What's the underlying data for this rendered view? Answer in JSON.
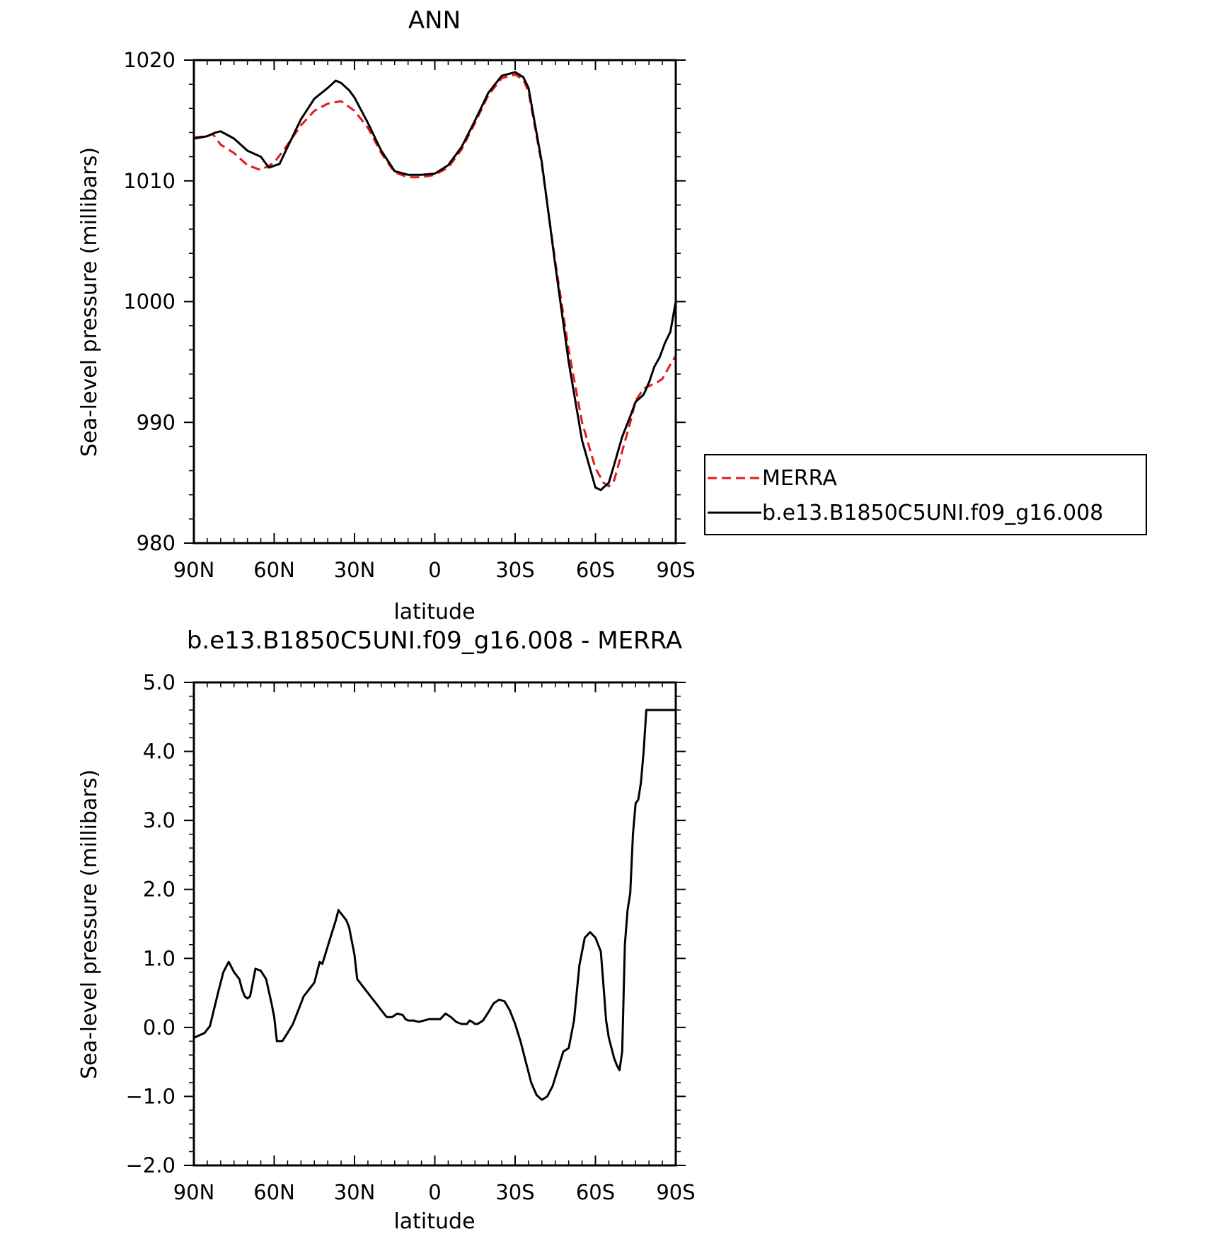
{
  "chart_data": [
    {
      "type": "line",
      "title": "ANN",
      "xlabel": "latitude",
      "ylabel": "Sea-level pressure (millibars)",
      "x_axis": "latitude degrees, 90 = 90N, -90 = 90S",
      "xlim": [
        90,
        -90
      ],
      "ylim": [
        980,
        1020
      ],
      "x_ticks": [
        90,
        60,
        30,
        0,
        -30,
        -60,
        -90
      ],
      "x_tick_labels": [
        "90N",
        "60N",
        "30N",
        "0",
        "30S",
        "60S",
        "90S"
      ],
      "y_ticks": [
        980,
        990,
        1000,
        1010,
        1020
      ],
      "y_tick_labels": [
        "980",
        "990",
        "1000",
        "1010",
        "1020"
      ],
      "legend_position": "right",
      "series": [
        {
          "name": "MERRA",
          "color": "#e41a1c",
          "dash": "dashed",
          "x": [
            90,
            85,
            83,
            80,
            75,
            70,
            65,
            60,
            55,
            50,
            45,
            40,
            35,
            30,
            25,
            20,
            15,
            10,
            5,
            0,
            -5,
            -10,
            -15,
            -20,
            -25,
            -30,
            -33,
            -35,
            -40,
            -45,
            -50,
            -55,
            -60,
            -63,
            -65,
            -67,
            -70,
            -73,
            -75,
            -78,
            -80,
            -83,
            -85,
            -88,
            -90
          ],
          "y": [
            1013.6,
            1013.7,
            1013.9,
            1013.0,
            1012.3,
            1011.3,
            1010.9,
            1011.5,
            1013.0,
            1014.6,
            1015.8,
            1016.4,
            1016.6,
            1015.8,
            1014.4,
            1012.3,
            1010.7,
            1010.3,
            1010.3,
            1010.5,
            1011.1,
            1012.6,
            1014.8,
            1017.1,
            1018.5,
            1018.8,
            1018.4,
            1017.4,
            1011.3,
            1003.3,
            996.0,
            990.0,
            986.2,
            985.0,
            984.7,
            985.2,
            987.6,
            990.0,
            991.8,
            992.8,
            993.0,
            993.3,
            993.6,
            994.8,
            995.5
          ]
        },
        {
          "name": "b.e13.B1850C5UNI.f09_g16.008",
          "color": "#000000",
          "dash": "solid",
          "x": [
            90,
            85,
            82,
            80,
            75,
            70,
            65,
            62,
            58,
            55,
            50,
            45,
            40,
            37,
            35,
            32,
            30,
            25,
            20,
            15,
            10,
            5,
            0,
            -5,
            -10,
            -15,
            -20,
            -25,
            -30,
            -33,
            -35,
            -40,
            -45,
            -50,
            -55,
            -60,
            -62,
            -65,
            -67,
            -70,
            -73,
            -75,
            -78,
            -80,
            -82,
            -84,
            -86,
            -88,
            -90
          ],
          "y": [
            1013.5,
            1013.7,
            1014.0,
            1014.1,
            1013.5,
            1012.5,
            1012.0,
            1011.1,
            1011.4,
            1012.8,
            1015.1,
            1016.8,
            1017.7,
            1018.3,
            1018.1,
            1017.5,
            1016.9,
            1014.8,
            1012.5,
            1010.8,
            1010.5,
            1010.5,
            1010.6,
            1011.3,
            1012.8,
            1015.0,
            1017.3,
            1018.7,
            1019.0,
            1018.6,
            1017.7,
            1011.5,
            1003.0,
            995.0,
            988.5,
            984.6,
            984.4,
            985.0,
            986.5,
            988.8,
            990.5,
            991.7,
            992.3,
            993.3,
            994.6,
            995.4,
            996.6,
            997.5,
            1000.0
          ]
        }
      ]
    },
    {
      "type": "line",
      "title": "b.e13.B1850C5UNI.f09_g16.008 - MERRA",
      "xlabel": "latitude",
      "ylabel": "Sea-level pressure (millibars)",
      "x_axis": "latitude degrees, 90 = 90N, -90 = 90S",
      "xlim": [
        90,
        -90
      ],
      "ylim": [
        -2.0,
        5.0
      ],
      "x_ticks": [
        90,
        60,
        30,
        0,
        -30,
        -60,
        -90
      ],
      "x_tick_labels": [
        "90N",
        "60N",
        "30N",
        "0",
        "30S",
        "60S",
        "90S"
      ],
      "y_ticks": [
        -2.0,
        -1.0,
        0.0,
        1.0,
        2.0,
        3.0,
        4.0,
        5.0
      ],
      "y_tick_labels": [
        "-2.0",
        "-1.0",
        "0.0",
        "1.0",
        "2.0",
        "3.0",
        "4.0",
        "5.0"
      ],
      "series": [
        {
          "color": "#000000",
          "dash": "solid",
          "x": [
            90,
            86,
            84,
            81,
            79,
            77,
            75,
            73,
            72,
            71,
            70,
            69,
            67,
            65,
            63,
            61,
            60,
            59,
            57,
            55,
            53,
            51,
            49,
            47,
            45,
            43,
            42,
            41,
            39,
            37,
            36,
            35,
            34,
            33,
            32,
            30,
            29,
            28,
            26,
            24,
            22,
            20,
            19,
            18,
            16,
            14,
            12,
            11,
            10,
            8,
            6,
            4,
            2,
            0,
            -2,
            -4,
            -6,
            -8,
            -10,
            -12,
            -13,
            -14,
            -15,
            -16,
            -18,
            -20,
            -22,
            -24,
            -26,
            -28,
            -30,
            -32,
            -34,
            -36,
            -38,
            -40,
            -42,
            -44,
            -46,
            -48,
            -50,
            -52,
            -54,
            -56,
            -58,
            -60,
            -62,
            -63,
            -64,
            -65,
            -66,
            -67,
            -68,
            -69,
            -70,
            -71,
            -72,
            -73,
            -74,
            -75,
            -76,
            -77,
            -78,
            -79,
            -80,
            -81,
            -82,
            -83,
            -84,
            -85,
            -86,
            -87,
            -88,
            -89,
            -90
          ],
          "y": [
            -0.15,
            -0.08,
            0.02,
            0.5,
            0.8,
            0.95,
            0.8,
            0.7,
            0.55,
            0.45,
            0.42,
            0.45,
            0.85,
            0.82,
            0.7,
            0.35,
            0.15,
            -0.2,
            -0.2,
            -0.08,
            0.05,
            0.25,
            0.45,
            0.55,
            0.65,
            0.95,
            0.92,
            1.05,
            1.3,
            1.55,
            1.7,
            1.65,
            1.6,
            1.55,
            1.45,
            1.05,
            0.7,
            0.65,
            0.55,
            0.45,
            0.35,
            0.25,
            0.2,
            0.15,
            0.15,
            0.2,
            0.18,
            0.12,
            0.1,
            0.1,
            0.08,
            0.1,
            0.12,
            0.12,
            0.12,
            0.2,
            0.15,
            0.08,
            0.05,
            0.05,
            0.1,
            0.08,
            0.05,
            0.05,
            0.1,
            0.22,
            0.35,
            0.4,
            0.38,
            0.25,
            0.05,
            -0.2,
            -0.5,
            -0.8,
            -0.98,
            -1.05,
            -1.0,
            -0.85,
            -0.6,
            -0.35,
            -0.3,
            0.1,
            0.9,
            1.3,
            1.38,
            1.3,
            1.1,
            0.6,
            0.1,
            -0.15,
            -0.3,
            -0.45,
            -0.55,
            -0.62,
            -0.35,
            1.2,
            1.7,
            1.95,
            2.8,
            3.25,
            3.3,
            3.55,
            4.0,
            4.6,
            4.6,
            4.6,
            4.6,
            4.6,
            4.6,
            4.6,
            4.6,
            4.6,
            4.6,
            4.6,
            4.6
          ]
        }
      ]
    }
  ]
}
